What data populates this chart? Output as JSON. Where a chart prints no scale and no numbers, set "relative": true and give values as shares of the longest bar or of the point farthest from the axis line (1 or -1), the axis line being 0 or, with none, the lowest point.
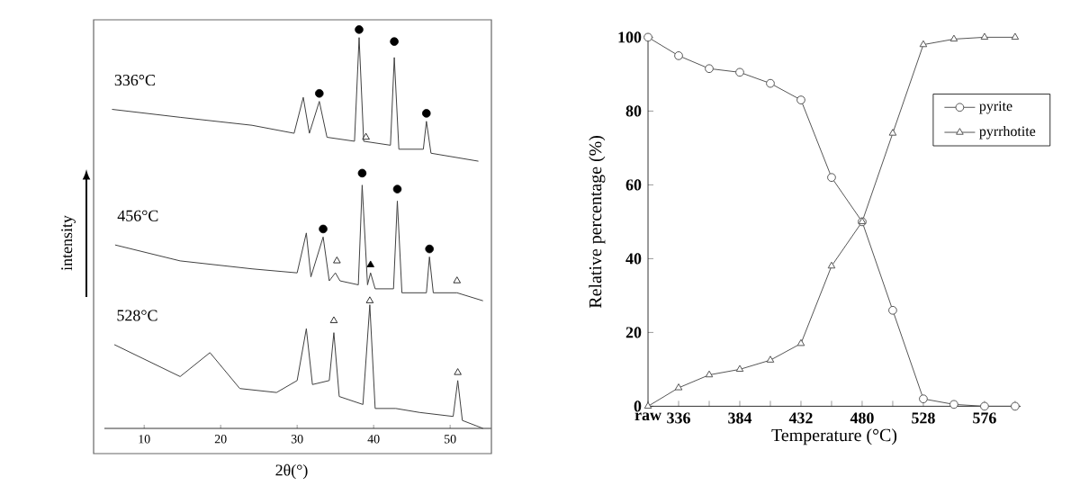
{
  "chart_data": [
    {
      "type": "line",
      "relative": true,
      "xlabel": "2θ(°)",
      "ylabel": "intensity",
      "xlim": [
        4.8,
        55.4
      ],
      "xticks": [
        10,
        20,
        30,
        40,
        50
      ],
      "series": [
        {
          "name": "336°C",
          "color": "#404040",
          "x": [
            5.8,
            14.7,
            24.1,
            29.6,
            30.8,
            31.6,
            32.9,
            33.9,
            37.5,
            38.1,
            38.7,
            42.2,
            42.7,
            43.3,
            46.5,
            46.9,
            47.5,
            53.7
          ],
          "values": [
            0.8,
            0.78,
            0.76,
            0.74,
            0.83,
            0.74,
            0.82,
            0.73,
            0.72,
            0.98,
            0.72,
            0.71,
            0.93,
            0.7,
            0.7,
            0.77,
            0.69,
            0.67
          ]
        },
        {
          "name": "456°C",
          "color": "#404040",
          "x": [
            6.2,
            14.7,
            24.1,
            30.0,
            31.2,
            31.8,
            33.4,
            34.2,
            35.0,
            35.6,
            38.0,
            38.5,
            39.2,
            39.6,
            40.2,
            42.6,
            43.1,
            43.7,
            46.9,
            47.3,
            47.8,
            50.9,
            54.3
          ],
          "values": [
            0.46,
            0.42,
            0.4,
            0.39,
            0.49,
            0.38,
            0.48,
            0.37,
            0.39,
            0.37,
            0.36,
            0.61,
            0.36,
            0.39,
            0.35,
            0.35,
            0.57,
            0.34,
            0.34,
            0.43,
            0.34,
            0.34,
            0.32
          ]
        },
        {
          "name": "528°C",
          "color": "#404040",
          "x": [
            6.1,
            14.7,
            18.6,
            22.5,
            27.3,
            30.0,
            31.2,
            32.0,
            34.2,
            34.8,
            35.5,
            38.6,
            39.5,
            40.2,
            42.9,
            46.0,
            50.4,
            51.0,
            51.6,
            54.3
          ],
          "values": [
            0.21,
            0.13,
            0.19,
            0.1,
            0.09,
            0.12,
            0.25,
            0.11,
            0.12,
            0.24,
            0.08,
            0.06,
            0.31,
            0.05,
            0.05,
            0.04,
            0.03,
            0.12,
            0.02,
            0.0
          ]
        },
        {
          "type": "scatter",
          "marker": "circle",
          "color": "#000000",
          "x": [
            32.9,
            38.1,
            42.7,
            46.9,
            33.4,
            38.5,
            43.1,
            47.3
          ],
          "values": [
            0.84,
            1.0,
            0.97,
            0.79,
            0.5,
            0.64,
            0.6,
            0.45
          ]
        },
        {
          "type": "scatter",
          "marker": "triangle",
          "color": "#ffffff",
          "x": [
            39.0,
            35.2,
            50.9,
            34.8,
            39.5,
            51.0
          ],
          "values": [
            0.73,
            0.42,
            0.37,
            0.27,
            0.32,
            0.14
          ]
        },
        {
          "type": "scatter",
          "marker": "triangle",
          "color": "#000000",
          "x": [
            39.6
          ],
          "values": [
            0.41
          ]
        }
      ]
    },
    {
      "type": "line",
      "xlabel": "Temperature (°C)",
      "ylabel": "Relative percentage (%)",
      "ylim": [
        0,
        100
      ],
      "yticks": [
        0,
        20,
        40,
        60,
        80,
        100
      ],
      "legend": "right",
      "categories": [
        "raw",
        "336",
        null,
        "384",
        null,
        "432",
        null,
        "480",
        null,
        "528",
        null,
        "576",
        null
      ],
      "series": [
        {
          "name": "pyrite",
          "color": "#555555",
          "marker": "circle",
          "values": [
            100,
            95,
            91.5,
            90.5,
            87.5,
            83,
            62,
            50,
            26,
            2,
            0.5,
            0,
            0
          ]
        },
        {
          "name": "pyrrhotite",
          "color": "#555555",
          "marker": "triangle",
          "values": [
            0,
            5,
            8.5,
            10,
            12.5,
            17,
            38,
            50,
            74,
            98,
            99.5,
            100,
            100
          ]
        }
      ]
    }
  ]
}
